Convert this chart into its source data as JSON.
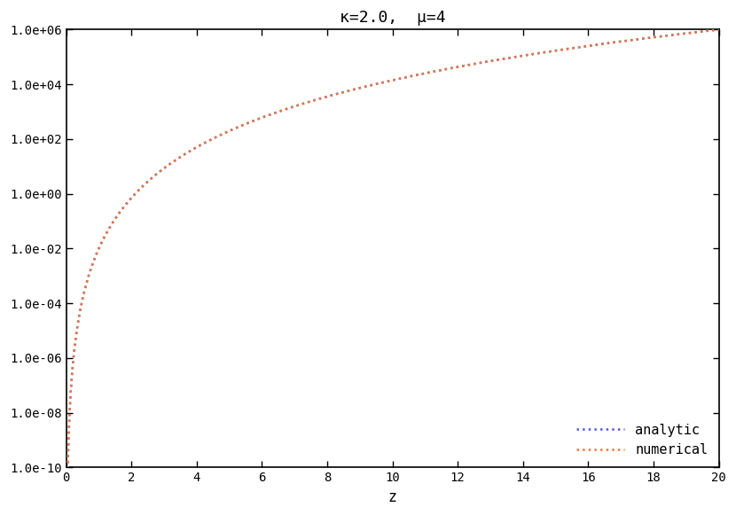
{
  "title": "κ=2.0,  μ=4",
  "xlabel": "z",
  "kappa": 2.0,
  "mu": 4,
  "numerical_color": "#E87A3A",
  "analytic_color": "#5555EE",
  "line_width": 1.8,
  "xlim": [
    0,
    20
  ],
  "ylim_exp_min": -10,
  "ylim_exp_max": 6,
  "xticks": [
    0,
    2,
    4,
    6,
    8,
    10,
    12,
    14,
    16,
    18,
    20
  ],
  "ytick_exponents": [
    -10,
    -8,
    -6,
    -4,
    -2,
    0,
    2,
    4,
    6
  ],
  "ytick_labels": [
    "1.0e-10",
    "1.0e-08",
    "1.0e-06",
    "1.0e-04",
    "1.0e-02",
    "1.0e+00",
    "1.0e+02",
    "1.0e+04",
    "1.0e+06"
  ],
  "legend_labels": [
    "numerical",
    "analytic"
  ],
  "title_fontsize": 13,
  "axis_label_fontsize": 12,
  "tick_fontsize": 10,
  "legend_fontsize": 11,
  "figsize": [
    8.3,
    5.81
  ],
  "dpi": 100,
  "alpha_power": 6.15,
  "alpha_coeff": 0.01
}
